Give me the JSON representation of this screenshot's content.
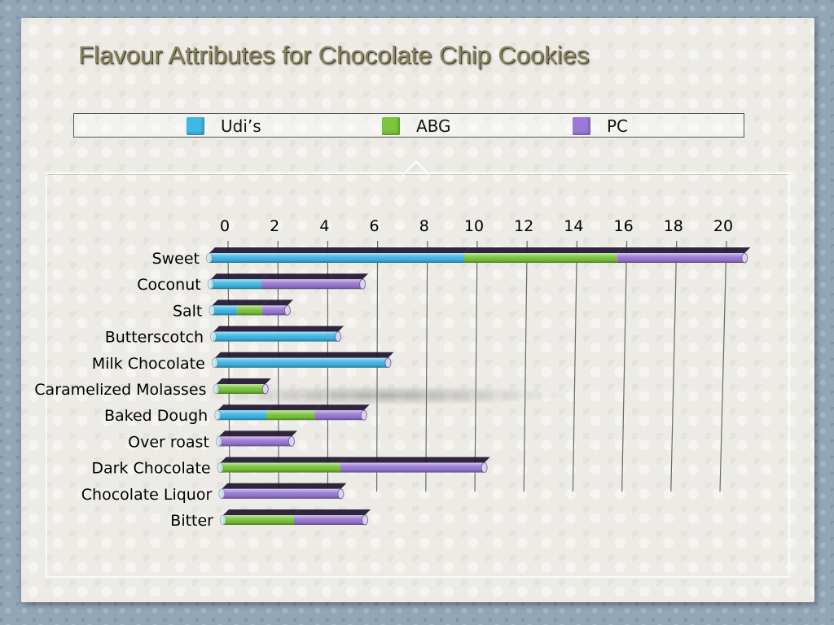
{
  "chart_data": {
    "type": "bar",
    "orientation": "horizontal",
    "stacked": true,
    "title": "Flavour Attributes for Chocolate Chip Cookies",
    "legend_position": "top",
    "xlim": [
      0,
      20
    ],
    "x_ticks": [
      "0",
      "2",
      "4",
      "6",
      "8",
      "10",
      "12",
      "14",
      "16",
      "18",
      "20"
    ],
    "grid": true,
    "categories": [
      "Sweet",
      "Coconut",
      "Salt",
      "Butterscotch",
      "Milk Chocolate",
      "Caramelized Molasses",
      "Baked Dough",
      "Over roast",
      "Dark Chocolate",
      "Chocolate Liquor",
      "Bitter"
    ],
    "series": [
      {
        "name": "Udi’s",
        "color": "#3fb8e6",
        "values": [
          10,
          2,
          1,
          5,
          7,
          0,
          2,
          0,
          0,
          0,
          0
        ]
      },
      {
        "name": "ABG",
        "color": "#7cc53c",
        "values": [
          6,
          0,
          1,
          0,
          0,
          2,
          2,
          0,
          5,
          0,
          3
        ]
      },
      {
        "name": "PC",
        "color": "#9a7ad6",
        "values": [
          5,
          4,
          1,
          0,
          0,
          0,
          2,
          3,
          6,
          5,
          3
        ]
      }
    ]
  }
}
